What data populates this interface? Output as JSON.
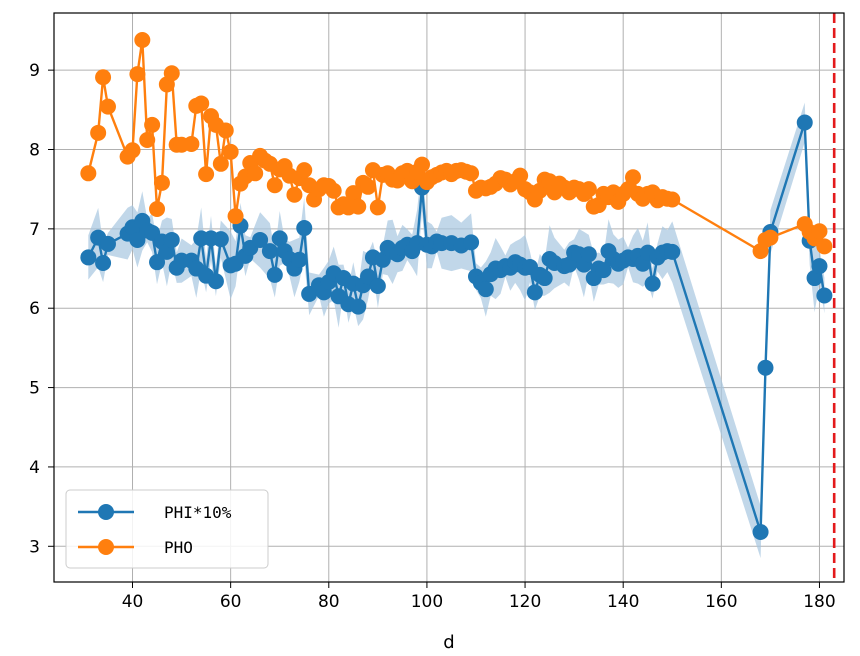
{
  "chart_data": {
    "type": "line",
    "xlabel": "d",
    "ylabel": "",
    "xlim": [
      24,
      185
    ],
    "ylim": [
      2.55,
      9.72
    ],
    "xticks": [
      40,
      60,
      80,
      100,
      120,
      140,
      160,
      180
    ],
    "yticks": [
      3,
      4,
      5,
      6,
      7,
      8,
      9
    ],
    "grid": true,
    "legend_position": "lower-left",
    "vline": {
      "x": 183,
      "color": "#e31a1c",
      "style": "dashed"
    },
    "series": [
      {
        "name": "PHI*10%",
        "color": "#1f77b4",
        "band_color": "#a6c6e0",
        "points": [
          [
            31,
            6.64
          ],
          [
            33,
            6.89
          ],
          [
            34,
            6.57
          ],
          [
            35,
            6.81
          ],
          [
            39,
            6.94
          ],
          [
            40,
            7.02
          ],
          [
            41,
            6.86
          ],
          [
            42,
            7.1
          ],
          [
            43,
            6.98
          ],
          [
            44,
            6.95
          ],
          [
            45,
            6.58
          ],
          [
            46,
            6.84
          ],
          [
            47,
            6.71
          ],
          [
            48,
            6.86
          ],
          [
            49,
            6.51
          ],
          [
            50,
            6.6
          ],
          [
            52,
            6.6
          ],
          [
            53,
            6.5
          ],
          [
            54,
            6.88
          ],
          [
            55,
            6.41
          ],
          [
            56,
            6.88
          ],
          [
            57,
            6.34
          ],
          [
            58,
            6.87
          ],
          [
            60,
            6.54
          ],
          [
            61,
            6.56
          ],
          [
            62,
            7.04
          ],
          [
            63,
            6.66
          ],
          [
            64,
            6.76
          ],
          [
            66,
            6.86
          ],
          [
            68,
            6.72
          ],
          [
            69,
            6.42
          ],
          [
            70,
            6.88
          ],
          [
            71,
            6.72
          ],
          [
            72,
            6.62
          ],
          [
            73,
            6.5
          ],
          [
            74,
            6.61
          ],
          [
            75,
            7.01
          ],
          [
            76,
            6.18
          ],
          [
            78,
            6.29
          ],
          [
            79,
            6.2
          ],
          [
            80,
            6.33
          ],
          [
            81,
            6.44
          ],
          [
            82,
            6.15
          ],
          [
            83,
            6.38
          ],
          [
            84,
            6.05
          ],
          [
            85,
            6.31
          ],
          [
            86,
            6.02
          ],
          [
            87,
            6.29
          ],
          [
            88,
            6.4
          ],
          [
            89,
            6.64
          ],
          [
            90,
            6.28
          ],
          [
            91,
            6.61
          ],
          [
            92,
            6.76
          ],
          [
            93,
            6.71
          ],
          [
            94,
            6.68
          ],
          [
            95,
            6.76
          ],
          [
            96,
            6.8
          ],
          [
            97,
            6.72
          ],
          [
            98,
            6.82
          ],
          [
            99,
            7.52
          ],
          [
            100,
            6.8
          ],
          [
            101,
            6.78
          ],
          [
            102,
            6.84
          ],
          [
            103,
            6.82
          ],
          [
            105,
            6.82
          ],
          [
            107,
            6.79
          ],
          [
            109,
            6.83
          ],
          [
            110,
            6.4
          ],
          [
            111,
            6.32
          ],
          [
            112,
            6.24
          ],
          [
            113,
            6.43
          ],
          [
            114,
            6.5
          ],
          [
            115,
            6.48
          ],
          [
            116,
            6.53
          ],
          [
            117,
            6.51
          ],
          [
            118,
            6.58
          ],
          [
            119,
            6.55
          ],
          [
            120,
            6.51
          ],
          [
            121,
            6.52
          ],
          [
            122,
            6.2
          ],
          [
            123,
            6.42
          ],
          [
            124,
            6.38
          ],
          [
            125,
            6.62
          ],
          [
            126,
            6.57
          ],
          [
            128,
            6.53
          ],
          [
            129,
            6.55
          ],
          [
            130,
            6.7
          ],
          [
            131,
            6.68
          ],
          [
            132,
            6.55
          ],
          [
            133,
            6.68
          ],
          [
            134,
            6.38
          ],
          [
            135,
            6.5
          ],
          [
            136,
            6.48
          ],
          [
            137,
            6.72
          ],
          [
            138,
            6.62
          ],
          [
            139,
            6.56
          ],
          [
            140,
            6.6
          ],
          [
            141,
            6.64
          ],
          [
            142,
            6.62
          ],
          [
            143,
            6.66
          ],
          [
            144,
            6.56
          ],
          [
            145,
            6.7
          ],
          [
            146,
            6.31
          ],
          [
            147,
            6.64
          ],
          [
            148,
            6.7
          ],
          [
            149,
            6.72
          ],
          [
            150,
            6.71
          ],
          [
            168,
            3.18
          ],
          [
            169,
            5.25
          ],
          [
            170,
            6.96
          ],
          [
            177,
            8.34
          ],
          [
            178,
            6.85
          ],
          [
            179,
            6.38
          ],
          [
            180,
            6.53
          ],
          [
            181,
            6.16
          ]
        ]
      },
      {
        "name": "PHO",
        "color": "#ff7f0e",
        "points": [
          [
            31,
            7.7
          ],
          [
            33,
            8.21
          ],
          [
            34,
            8.91
          ],
          [
            35,
            8.54
          ],
          [
            39,
            7.91
          ],
          [
            40,
            7.99
          ],
          [
            41,
            8.95
          ],
          [
            42,
            9.38
          ],
          [
            43,
            8.12
          ],
          [
            44,
            8.31
          ],
          [
            45,
            7.25
          ],
          [
            46,
            7.58
          ],
          [
            47,
            8.82
          ],
          [
            48,
            8.96
          ],
          [
            49,
            8.06
          ],
          [
            50,
            8.06
          ],
          [
            52,
            8.07
          ],
          [
            53,
            8.55
          ],
          [
            54,
            8.58
          ],
          [
            55,
            7.69
          ],
          [
            56,
            8.42
          ],
          [
            57,
            8.31
          ],
          [
            58,
            7.82
          ],
          [
            59,
            8.24
          ],
          [
            60,
            7.97
          ],
          [
            61,
            7.16
          ],
          [
            62,
            7.57
          ],
          [
            63,
            7.66
          ],
          [
            64,
            7.83
          ],
          [
            65,
            7.7
          ],
          [
            66,
            7.92
          ],
          [
            67,
            7.86
          ],
          [
            68,
            7.82
          ],
          [
            69,
            7.55
          ],
          [
            70,
            7.75
          ],
          [
            71,
            7.79
          ],
          [
            72,
            7.67
          ],
          [
            73,
            7.43
          ],
          [
            74,
            7.64
          ],
          [
            75,
            7.74
          ],
          [
            76,
            7.55
          ],
          [
            77,
            7.37
          ],
          [
            78,
            7.5
          ],
          [
            79,
            7.55
          ],
          [
            80,
            7.54
          ],
          [
            81,
            7.48
          ],
          [
            82,
            7.27
          ],
          [
            83,
            7.31
          ],
          [
            84,
            7.27
          ],
          [
            85,
            7.45
          ],
          [
            86,
            7.28
          ],
          [
            87,
            7.58
          ],
          [
            88,
            7.53
          ],
          [
            89,
            7.74
          ],
          [
            90,
            7.27
          ],
          [
            91,
            7.68
          ],
          [
            92,
            7.7
          ],
          [
            93,
            7.62
          ],
          [
            94,
            7.61
          ],
          [
            95,
            7.7
          ],
          [
            96,
            7.73
          ],
          [
            97,
            7.6
          ],
          [
            98,
            7.72
          ],
          [
            99,
            7.81
          ],
          [
            100,
            7.59
          ],
          [
            101,
            7.65
          ],
          [
            102,
            7.68
          ],
          [
            103,
            7.71
          ],
          [
            104,
            7.73
          ],
          [
            105,
            7.69
          ],
          [
            106,
            7.73
          ],
          [
            107,
            7.74
          ],
          [
            108,
            7.72
          ],
          [
            109,
            7.7
          ],
          [
            110,
            7.48
          ],
          [
            111,
            7.52
          ],
          [
            112,
            7.51
          ],
          [
            113,
            7.53
          ],
          [
            114,
            7.57
          ],
          [
            115,
            7.64
          ],
          [
            116,
            7.62
          ],
          [
            117,
            7.56
          ],
          [
            118,
            7.6
          ],
          [
            119,
            7.67
          ],
          [
            120,
            7.5
          ],
          [
            121,
            7.46
          ],
          [
            122,
            7.37
          ],
          [
            123,
            7.48
          ],
          [
            124,
            7.62
          ],
          [
            125,
            7.6
          ],
          [
            126,
            7.46
          ],
          [
            127,
            7.57
          ],
          [
            128,
            7.52
          ],
          [
            129,
            7.46
          ],
          [
            130,
            7.52
          ],
          [
            131,
            7.5
          ],
          [
            132,
            7.44
          ],
          [
            133,
            7.5
          ],
          [
            134,
            7.28
          ],
          [
            135,
            7.3
          ],
          [
            136,
            7.44
          ],
          [
            137,
            7.4
          ],
          [
            138,
            7.46
          ],
          [
            139,
            7.34
          ],
          [
            140,
            7.44
          ],
          [
            141,
            7.5
          ],
          [
            142,
            7.65
          ],
          [
            143,
            7.44
          ],
          [
            144,
            7.38
          ],
          [
            145,
            7.44
          ],
          [
            146,
            7.46
          ],
          [
            147,
            7.36
          ],
          [
            148,
            7.4
          ],
          [
            149,
            7.38
          ],
          [
            150,
            7.37
          ],
          [
            168,
            6.72
          ],
          [
            169,
            6.86
          ],
          [
            170,
            6.89
          ],
          [
            177,
            7.06
          ],
          [
            178,
            6.96
          ],
          [
            179,
            6.88
          ],
          [
            180,
            6.97
          ],
          [
            181,
            6.78
          ]
        ]
      }
    ]
  }
}
